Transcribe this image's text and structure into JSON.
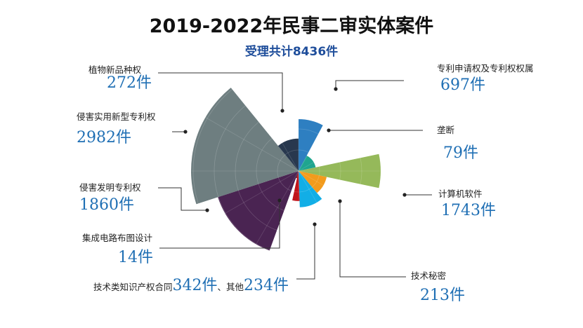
{
  "chart_data": {
    "type": "pie",
    "variant": "rose",
    "title": "2019-2022年民事二审实体案件",
    "subtitle": "受理共计8436件",
    "unit": "件",
    "categories": [
      {
        "name": "专利申请权及专利权权属",
        "value": 697,
        "value_label": "697件",
        "color": "#2e7fc1"
      },
      {
        "name": "垄断",
        "value": 79,
        "value_label": "79件",
        "color": "#1fa58f"
      },
      {
        "name": "计算机软件",
        "value": 1743,
        "value_label": "1743件",
        "color": "#95b95a"
      },
      {
        "name": "技术秘密",
        "value": 213,
        "value_label": "213件",
        "color": "#f29b1d"
      },
      {
        "name": "技术类知识产权合同",
        "value": 342,
        "value_label": "342件",
        "color": "#12aee6"
      },
      {
        "name": "其他",
        "value": 234,
        "value_label": "234件",
        "color": "#c0141a"
      },
      {
        "name": "集成电路布图设计",
        "value": 14,
        "value_label": "14件",
        "color": "#7a1e1e"
      },
      {
        "name": "侵害发明专利权",
        "value": 1860,
        "value_label": "1860件",
        "color": "#4a2452"
      },
      {
        "name": "侵害实用新型专利权",
        "value": 2982,
        "value_label": "2982件",
        "color": "#6e7e80"
      },
      {
        "name": "植物新品种权",
        "value": 272,
        "value_label": "272件",
        "color": "#28384e"
      }
    ],
    "combined_label": {
      "sep": "、"
    }
  }
}
